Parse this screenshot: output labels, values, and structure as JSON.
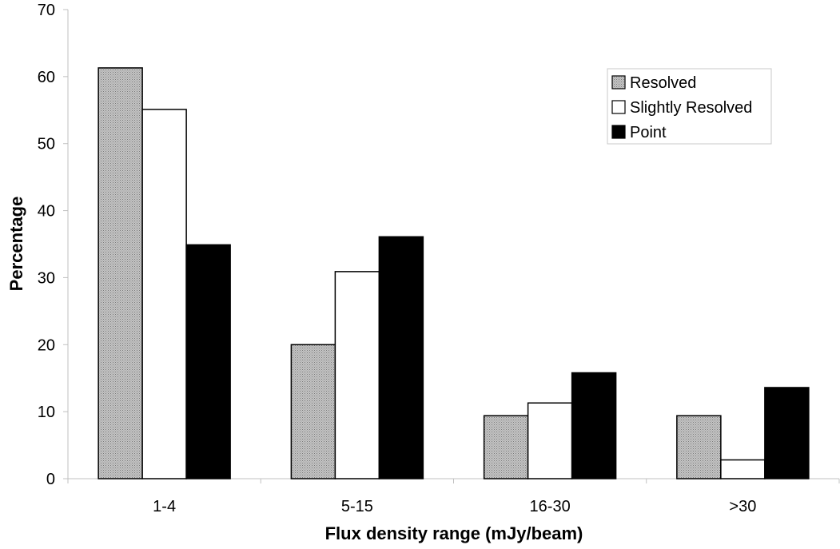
{
  "chart_data": {
    "type": "bar",
    "title": "",
    "xlabel": "Flux density range (mJy/beam)",
    "ylabel": "Percentage",
    "categories": [
      "1-4",
      "5-15",
      "16-30",
      ">30"
    ],
    "ylim": [
      0,
      70
    ],
    "yticks": [
      0,
      10,
      20,
      30,
      40,
      50,
      60,
      70
    ],
    "series": [
      {
        "name": "Resolved",
        "values": [
          61.3,
          20.0,
          9.4,
          9.4
        ],
        "color": "#b0b0b0",
        "pattern": "dotted-gray"
      },
      {
        "name": "Slightly Resolved",
        "values": [
          55.1,
          30.9,
          11.3,
          2.8
        ],
        "color": "#ffffff"
      },
      {
        "name": "Point",
        "values": [
          34.9,
          36.1,
          15.8,
          13.6
        ],
        "color": "#000000"
      }
    ],
    "legend": "top-right",
    "grid": false
  }
}
